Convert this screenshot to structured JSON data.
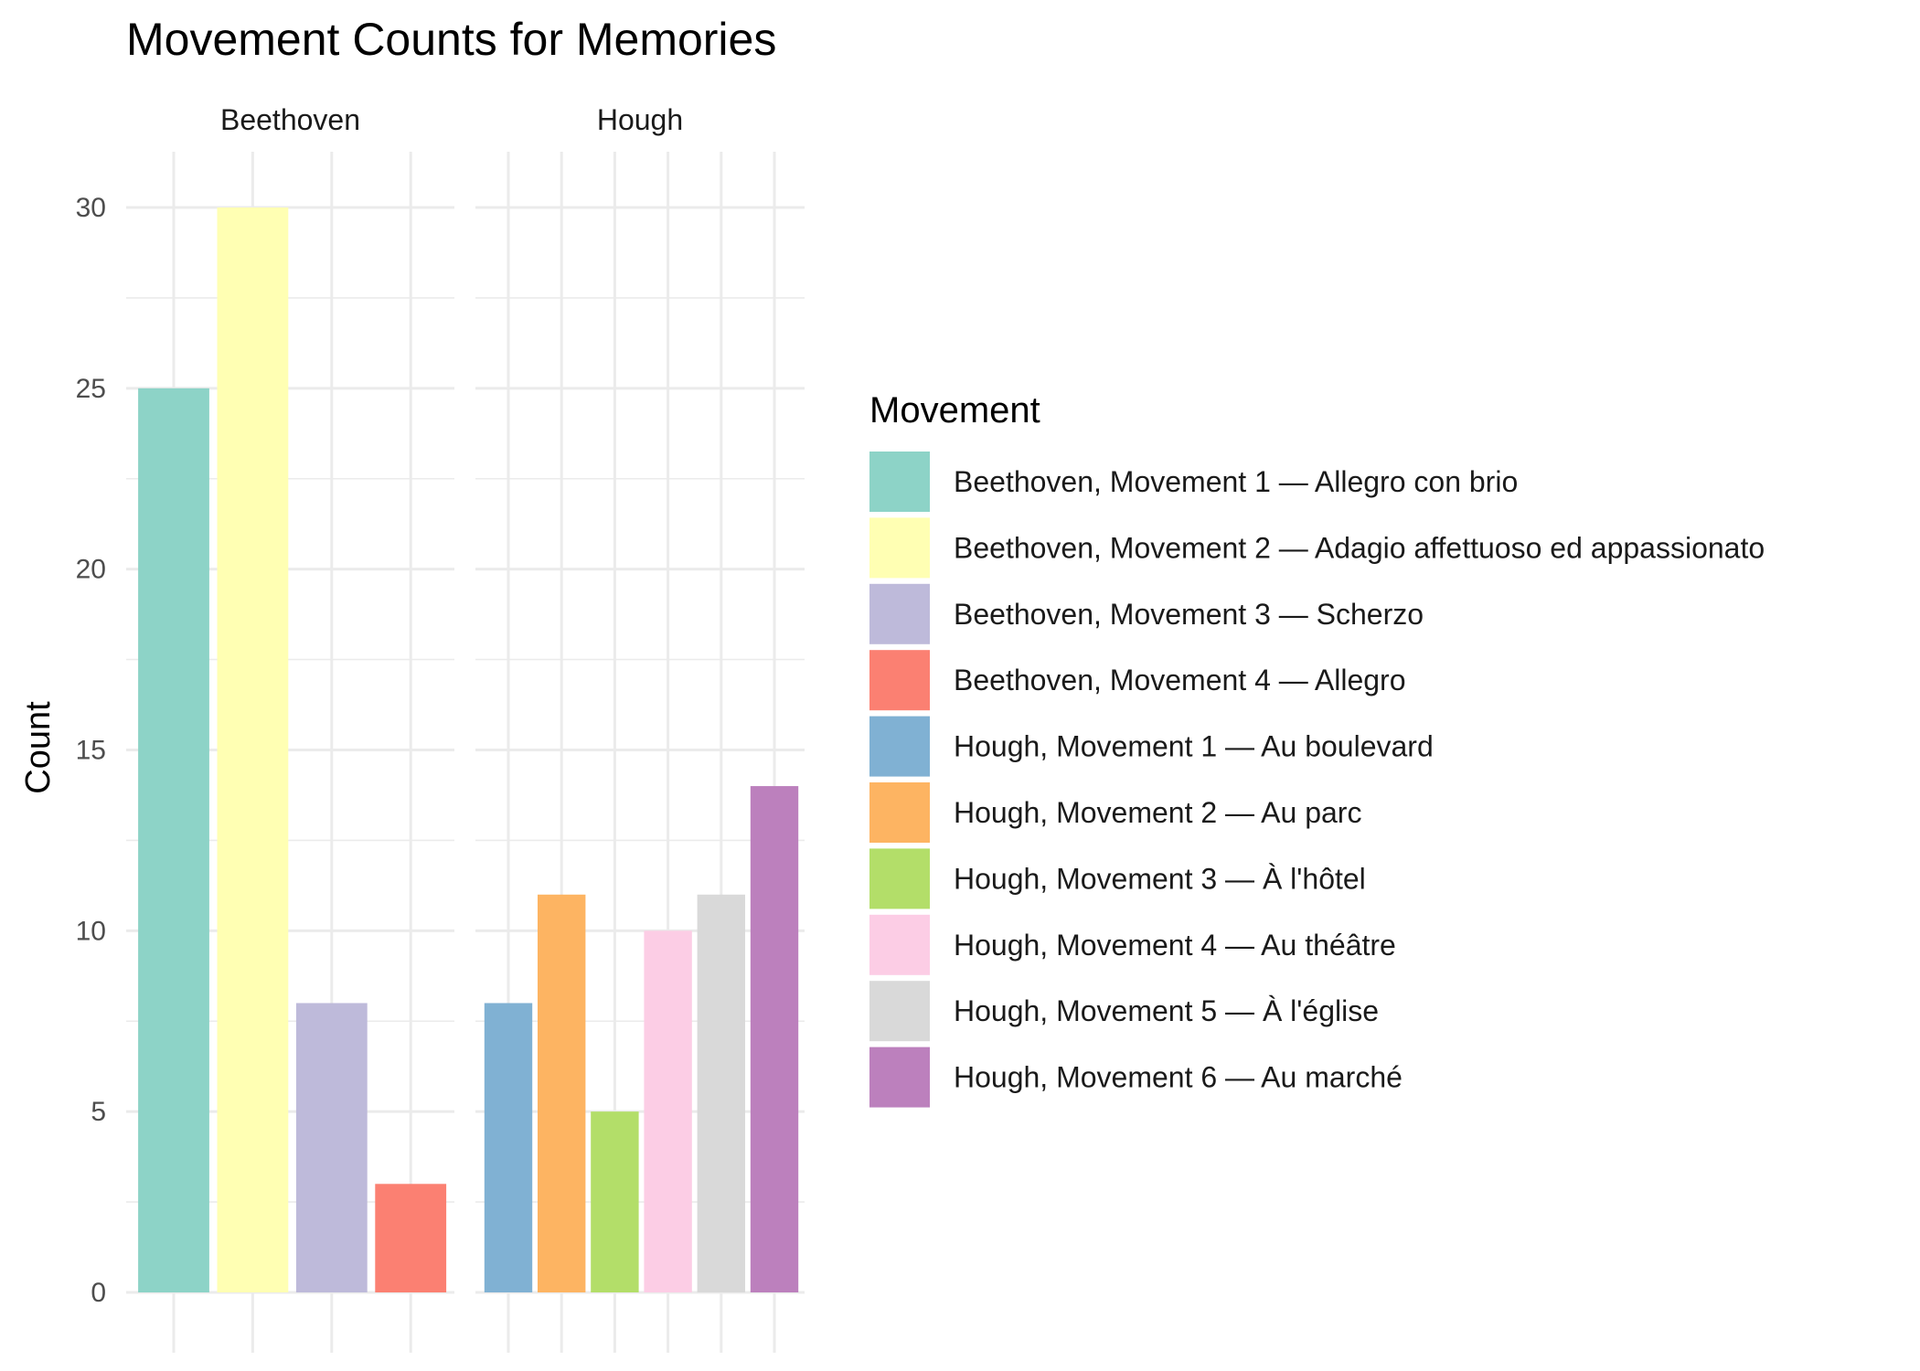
{
  "chart_data": {
    "type": "bar",
    "title": "Movement Counts for Memories",
    "xlabel": "",
    "ylabel": "Count",
    "ylim": [
      0,
      31
    ],
    "y_ticks": [
      0,
      5,
      10,
      15,
      20,
      25,
      30
    ],
    "grid": true,
    "legend": {
      "title": "Movement",
      "placement": "right",
      "entries": [
        {
          "label": "Beethoven, Movement 1 — Allegro con brio",
          "color": "#8DD3C7"
        },
        {
          "label": "Beethoven, Movement 2 — Adagio affettuoso ed appassionato",
          "color": "#FFFFB3"
        },
        {
          "label": "Beethoven, Movement 3 — Scherzo",
          "color": "#BEBADA"
        },
        {
          "label": "Beethoven, Movement 4 — Allegro",
          "color": "#FB8072"
        },
        {
          "label": "Hough, Movement 1 — Au boulevard",
          "color": "#80B1D3"
        },
        {
          "label": "Hough, Movement 2 — Au parc",
          "color": "#FDB462"
        },
        {
          "label": "Hough, Movement 3 — À l'hôtel",
          "color": "#B3DE69"
        },
        {
          "label": "Hough, Movement 4 — Au théâtre",
          "color": "#FCCDE5"
        },
        {
          "label": "Hough, Movement 5 — À l'église",
          "color": "#D9D9D9"
        },
        {
          "label": "Hough, Movement 6 — Au marché",
          "color": "#BC80BD"
        }
      ]
    },
    "facets": [
      {
        "name": "Beethoven",
        "bars": [
          {
            "label": "Beethoven, Movement 1 — Allegro con brio",
            "value": 25,
            "color": "#8DD3C7"
          },
          {
            "label": "Beethoven, Movement 2 — Adagio affettuoso ed appassionato",
            "value": 30,
            "color": "#FFFFB3"
          },
          {
            "label": "Beethoven, Movement 3 — Scherzo",
            "value": 8,
            "color": "#BEBADA"
          },
          {
            "label": "Beethoven, Movement 4 — Allegro",
            "value": 3,
            "color": "#FB8072"
          }
        ]
      },
      {
        "name": "Hough",
        "bars": [
          {
            "label": "Hough, Movement 1 — Au boulevard",
            "value": 8,
            "color": "#80B1D3"
          },
          {
            "label": "Hough, Movement 2 — Au parc",
            "value": 11,
            "color": "#FDB462"
          },
          {
            "label": "Hough, Movement 3 — À l'hôtel",
            "value": 5,
            "color": "#B3DE69"
          },
          {
            "label": "Hough, Movement 4 — Au théâtre",
            "value": 10,
            "color": "#FCCDE5"
          },
          {
            "label": "Hough, Movement 5 — À l'église",
            "value": 11,
            "color": "#D9D9D9"
          },
          {
            "label": "Hough, Movement 6 — Au marché",
            "value": 14,
            "color": "#BC80BD"
          }
        ]
      }
    ]
  }
}
